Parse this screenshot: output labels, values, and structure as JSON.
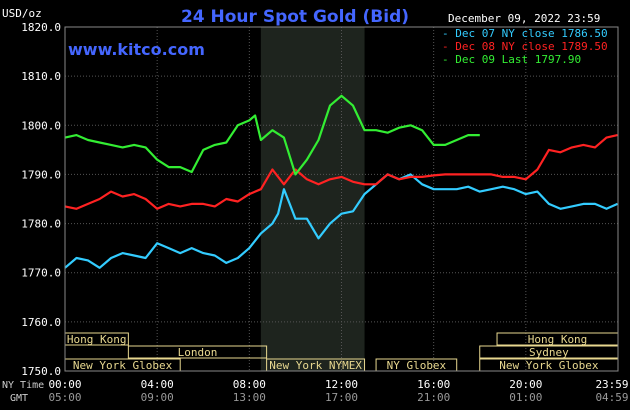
{
  "chart_data": {
    "type": "line",
    "title": "24 Hour Spot Gold (Bid)",
    "watermark": "www.kitco.com",
    "date_label": "December 09, 2022 23:59",
    "ylabel": "USD/oz",
    "ylim": [
      1750,
      1820
    ],
    "yticks": [
      "1820.0",
      "1810.0",
      "1800.0",
      "1790.0",
      "1780.0",
      "1770.0",
      "1760.0",
      "1750.0"
    ],
    "xlim_hours": [
      0,
      24
    ],
    "xticks_ny": [
      "00:00",
      "04:00",
      "08:00",
      "12:00",
      "16:00",
      "20:00",
      "23:59"
    ],
    "xticks_gmt": [
      "05:00",
      "09:00",
      "13:00",
      "17:00",
      "21:00",
      "01:00",
      "04:59"
    ],
    "ny_time_label": "NY Time",
    "gmt_label": "GMT",
    "colors": {
      "background": "#000000",
      "grid": "#555555",
      "axis_text": "#ffffff",
      "title": "#4466ff",
      "nymex_shade": "#1e241e",
      "session_box": "#e8d890"
    },
    "legend": {
      "placement": "top-right",
      "entries": [
        {
          "label": "Dec 07 NY close 1786.50",
          "color": "#33ccff"
        },
        {
          "label": "Dec 08 NY close 1789.50",
          "color": "#ff2222"
        },
        {
          "label": "Dec 09 Last 1797.90",
          "color": "#33ee33"
        }
      ]
    },
    "sessions": [
      {
        "name": "Hong Kong",
        "start": 0,
        "end": 2.75,
        "row": 0
      },
      {
        "name": "Hong Kong",
        "start": 18.75,
        "end": 24,
        "row": 0
      },
      {
        "name": "London",
        "start": 2.75,
        "end": 8.75,
        "row": 1
      },
      {
        "name": "Sydney",
        "start": 18.0,
        "end": 24,
        "row": 1
      },
      {
        "name": "New York Globex",
        "start": 0,
        "end": 5.0,
        "row": 2
      },
      {
        "name": "New York NYMEX",
        "start": 8.75,
        "end": 13.0,
        "row": 2
      },
      {
        "name": "NY Globex",
        "start": 13.5,
        "end": 17.0,
        "row": 2
      },
      {
        "name": "New York Globex",
        "start": 18.0,
        "end": 24,
        "row": 2
      }
    ],
    "nymex_shade_hours": [
      8.5,
      13.0
    ],
    "series": [
      {
        "name": "Dec 07 NY close 1786.50",
        "color": "#33ccff",
        "x": [
          0,
          0.5,
          1,
          1.5,
          2,
          2.5,
          3,
          3.5,
          4,
          4.5,
          5,
          5.5,
          6,
          6.5,
          7,
          7.5,
          8,
          8.5,
          9,
          9.25,
          9.5,
          9.75,
          10,
          10.5,
          11,
          11.5,
          12,
          12.5,
          13,
          13.5,
          14,
          14.5,
          15,
          15.5,
          16,
          16.5,
          17,
          17.5,
          18,
          18.5,
          19,
          19.5,
          20,
          20.5,
          21,
          21.5,
          22,
          22.5,
          23,
          23.5,
          23.98
        ],
        "y": [
          1771,
          1773,
          1772.5,
          1771,
          1773,
          1774,
          1773.5,
          1773,
          1776,
          1775,
          1774,
          1775,
          1774,
          1773.5,
          1772,
          1773,
          1775,
          1778,
          1780,
          1782,
          1787,
          1784,
          1781,
          1781,
          1777,
          1780,
          1782,
          1782.5,
          1786,
          1788,
          1790,
          1789,
          1790,
          1788,
          1787,
          1787,
          1787,
          1787.5,
          1786.5,
          1787,
          1787.5,
          1787,
          1786,
          1786.5,
          1784,
          1783,
          1783.5,
          1784,
          1784,
          1783,
          1784
        ]
      },
      {
        "name": "Dec 08 NY close 1789.50",
        "color": "#ff2222",
        "x": [
          0,
          0.5,
          1,
          1.5,
          2,
          2.5,
          3,
          3.5,
          4,
          4.5,
          5,
          5.5,
          6,
          6.5,
          7,
          7.5,
          8,
          8.5,
          9,
          9.5,
          10,
          10.5,
          11,
          11.5,
          12,
          12.5,
          13,
          13.5,
          14,
          14.5,
          15,
          15.5,
          16,
          16.5,
          17,
          17.5,
          18,
          18.5,
          19,
          19.5,
          20,
          20.5,
          21,
          21.5,
          22,
          22.5,
          23,
          23.5,
          23.98
        ],
        "y": [
          1783.5,
          1783,
          1784,
          1785,
          1786.5,
          1785.5,
          1786,
          1785,
          1783,
          1784,
          1783.5,
          1784,
          1784,
          1783.5,
          1785,
          1784.5,
          1786,
          1787,
          1791,
          1788,
          1791,
          1789,
          1788,
          1789,
          1789.5,
          1788.5,
          1788,
          1788,
          1790,
          1789,
          1789.5,
          1789.5,
          1789.8,
          1790,
          1790,
          1790,
          1790,
          1790,
          1789.5,
          1789.5,
          1789,
          1791,
          1795,
          1794.5,
          1795.5,
          1796,
          1795.5,
          1797.5,
          1798
        ]
      },
      {
        "name": "Dec 09 Last 1797.90",
        "color": "#33ee33",
        "x": [
          0,
          0.5,
          1,
          1.5,
          2,
          2.5,
          3,
          3.5,
          4,
          4.5,
          5,
          5.5,
          6,
          6.5,
          7,
          7.5,
          8,
          8.25,
          8.5,
          9,
          9.5,
          10,
          10.5,
          11,
          11.5,
          12,
          12.5,
          13,
          13.5,
          14,
          14.5,
          15,
          15.5,
          16,
          16.5,
          17,
          17.5,
          18
        ],
        "y": [
          1797.5,
          1798,
          1797,
          1796.5,
          1796,
          1795.5,
          1796,
          1795.5,
          1793,
          1791.5,
          1791.5,
          1790.5,
          1795,
          1796,
          1796.5,
          1800,
          1801,
          1802,
          1797,
          1799,
          1797.5,
          1790,
          1793,
          1797,
          1804,
          1806,
          1804,
          1799,
          1799,
          1798.5,
          1799.5,
          1800,
          1799,
          1796,
          1796,
          1797,
          1798,
          1798
        ]
      }
    ]
  }
}
